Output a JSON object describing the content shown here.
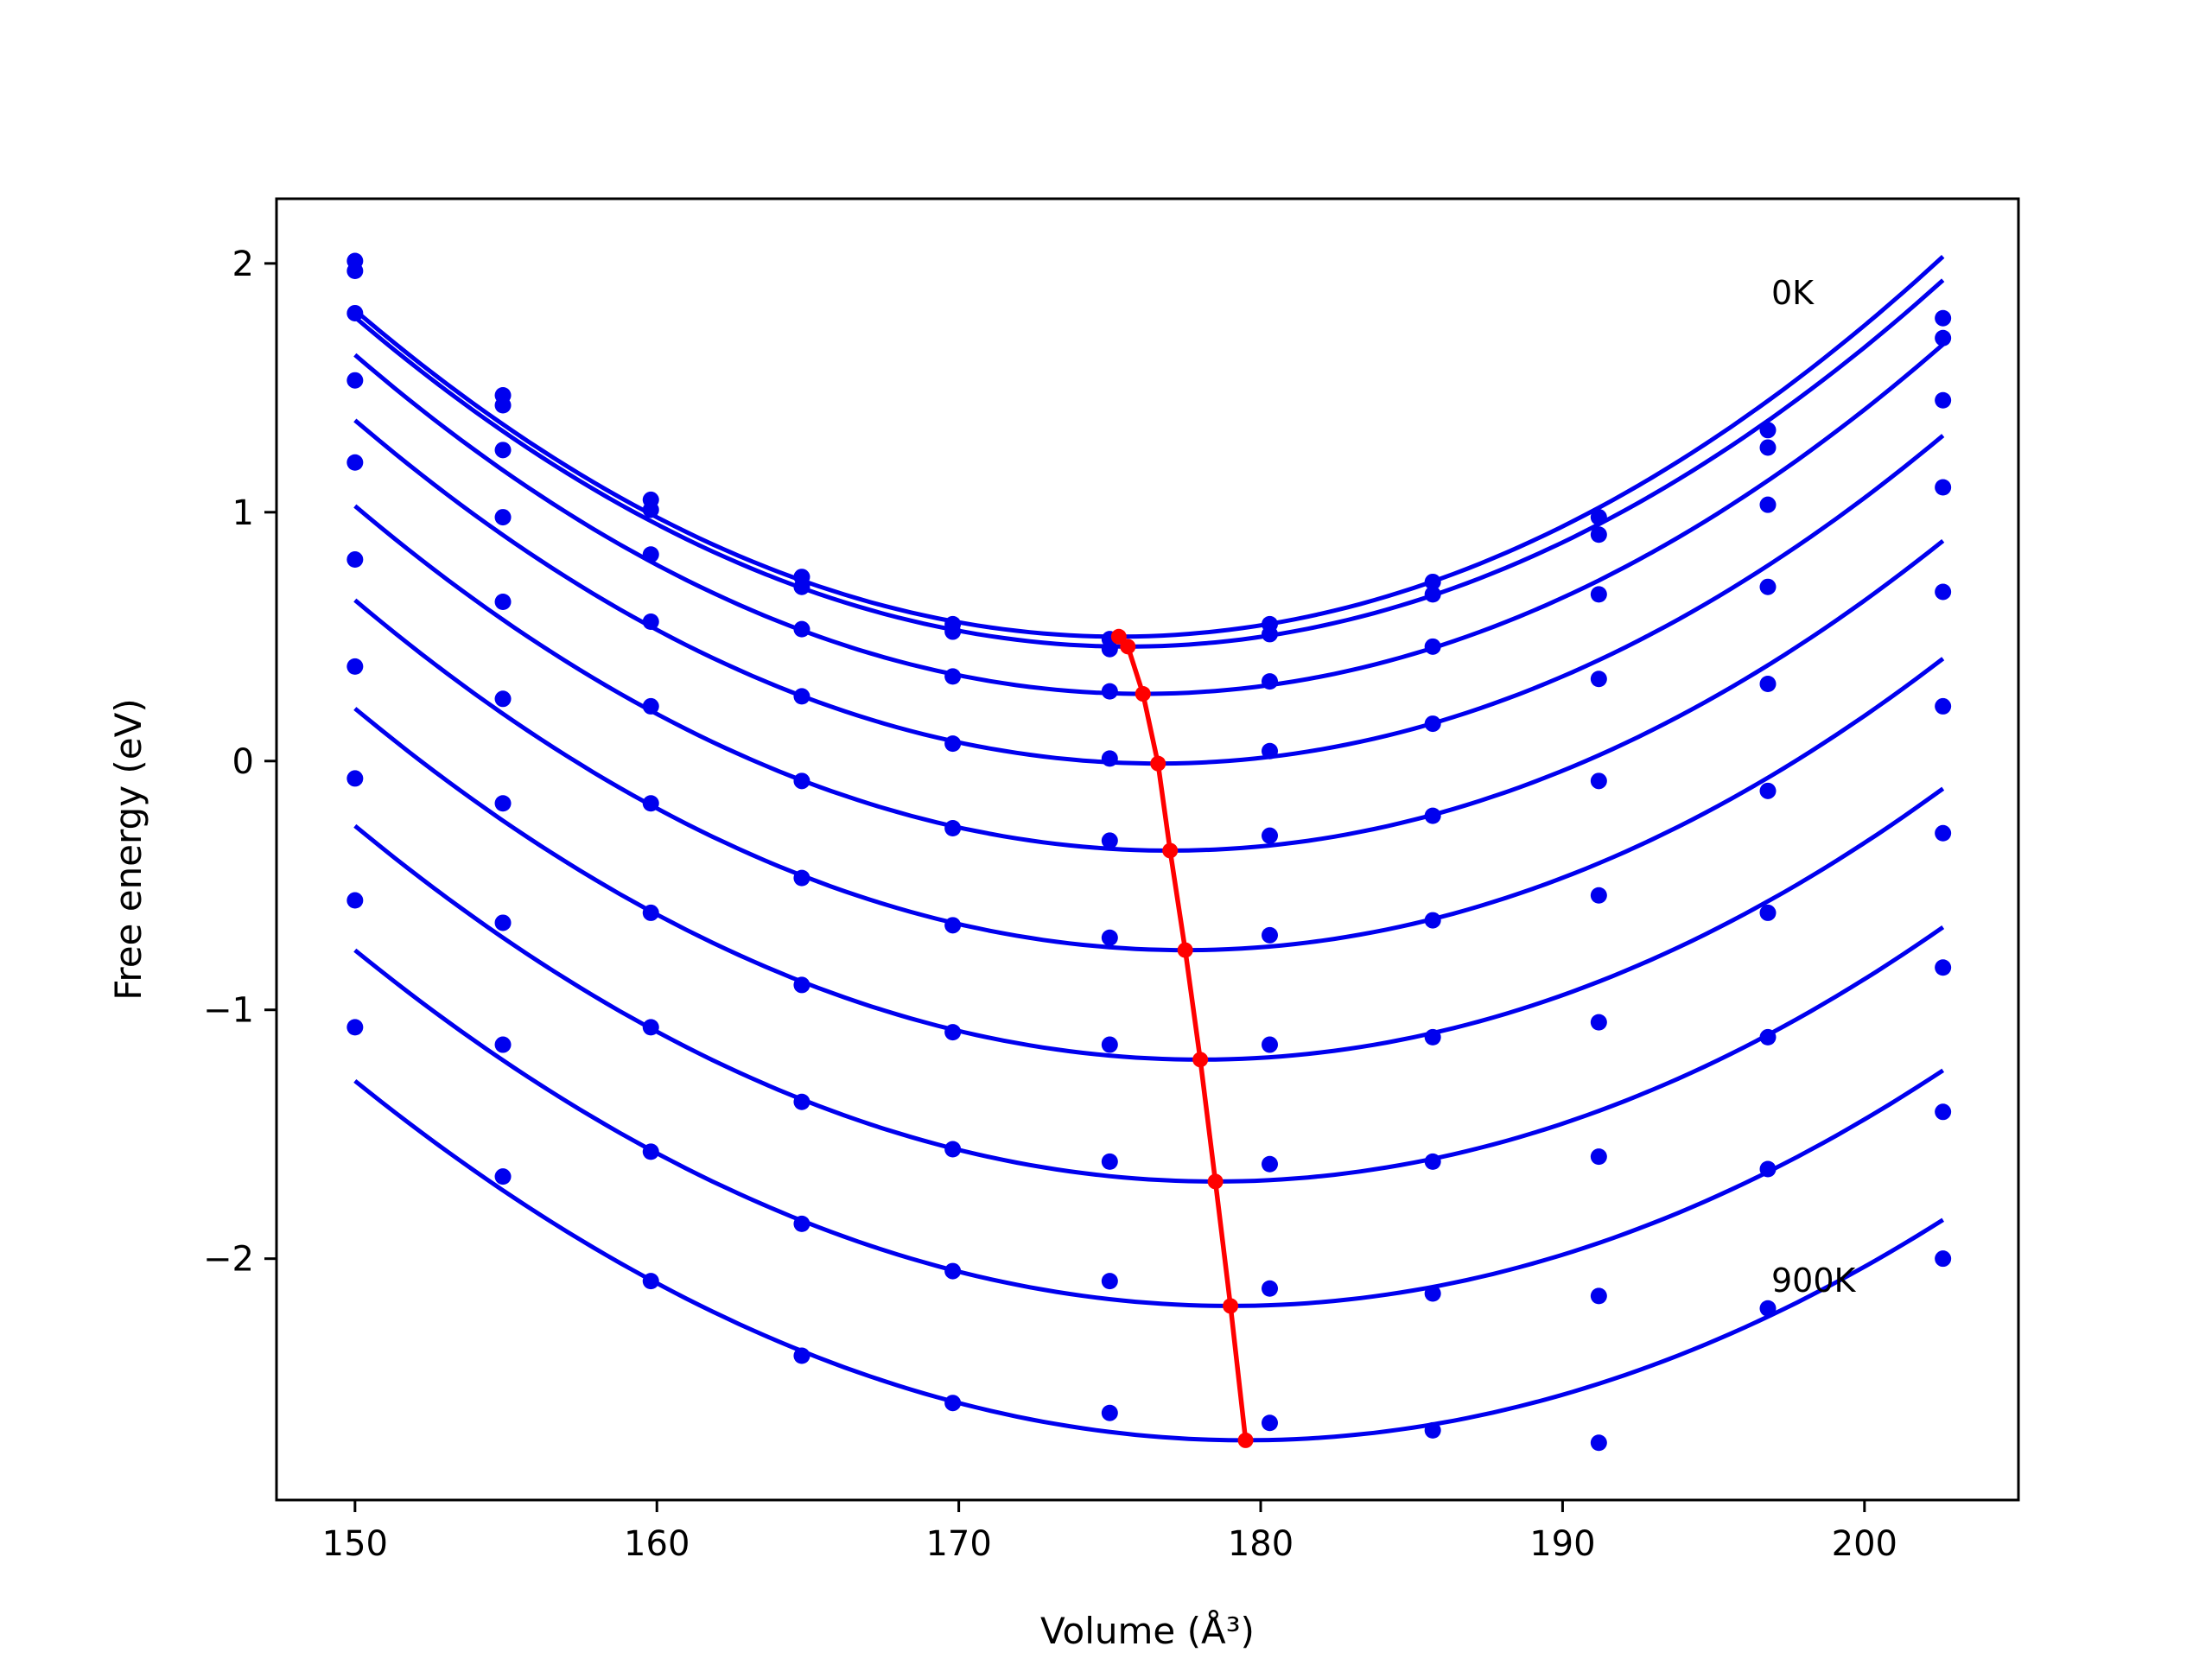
{
  "chart_data": {
    "type": "line",
    "xlabel": "Volume (Å³)",
    "ylabel": "Free energy (eV)",
    "xlim": [
      147.4,
      205.1
    ],
    "ylim": [
      -2.97,
      2.26
    ],
    "xticks": [
      150,
      160,
      170,
      180,
      190,
      200
    ],
    "yticks": [
      -2,
      -1,
      0,
      1,
      2
    ],
    "xtick_labels": [
      "150",
      "160",
      "170",
      "180",
      "190",
      "200"
    ],
    "ytick_labels": [
      "−2",
      "−1",
      "0",
      "1",
      "2"
    ],
    "grid": false,
    "annotations": [
      {
        "text": "0K",
        "x": 197.8,
        "y": 1.85
      },
      {
        "text": "900K",
        "x": 197.8,
        "y": -2.13
      }
    ],
    "colors": {
      "curves": "#0000ee",
      "minima": "#ff0000"
    },
    "volumes": [
      150.0,
      154.9,
      159.8,
      164.8,
      169.8,
      175.0,
      180.3,
      185.7,
      191.2,
      196.8,
      202.6
    ],
    "series": [
      {
        "fit_min": [
          175.3,
          0.5
        ],
        "fit_a": 0.00205,
        "points": [
          2.01,
          1.47,
          1.05,
          0.74,
          0.55,
          0.49,
          0.55,
          0.72,
          0.98,
          1.33,
          1.78
        ]
      },
      {
        "fit_min": [
          175.6,
          0.46
        ],
        "fit_a": 0.00202,
        "points": [
          1.97,
          1.43,
          1.01,
          0.7,
          0.52,
          0.45,
          0.51,
          0.67,
          0.91,
          1.26,
          1.7
        ]
      },
      {
        "fit_min": [
          176.1,
          0.27
        ],
        "fit_a": 0.002,
        "points": [
          1.8,
          1.25,
          0.83,
          0.53,
          0.34,
          0.28,
          0.32,
          0.46,
          0.67,
          1.03,
          1.45
        ]
      },
      {
        "fit_min": [
          176.6,
          -0.01
        ],
        "fit_a": 0.00195,
        "points": [
          1.53,
          0.98,
          0.56,
          0.26,
          0.07,
          0.01,
          0.04,
          0.15,
          0.33,
          0.7,
          1.1
        ]
      },
      {
        "fit_min": [
          177.0,
          -0.36
        ],
        "fit_a": 0.0019,
        "points": [
          1.2,
          0.64,
          0.22,
          -0.08,
          -0.27,
          -0.32,
          -0.3,
          -0.22,
          -0.08,
          0.31,
          0.68
        ]
      },
      {
        "fit_min": [
          177.5,
          -0.76
        ],
        "fit_a": 0.00186,
        "points": [
          0.81,
          0.25,
          -0.17,
          -0.47,
          -0.66,
          -0.71,
          -0.7,
          -0.64,
          -0.54,
          -0.12,
          0.22
        ]
      },
      {
        "fit_min": [
          178.0,
          -1.2
        ],
        "fit_a": 0.0018,
        "points": [
          0.38,
          -0.17,
          -0.61,
          -0.9,
          -1.09,
          -1.14,
          -1.14,
          -1.11,
          -1.05,
          -0.61,
          -0.29
        ]
      },
      {
        "fit_min": [
          178.5,
          -1.69
        ],
        "fit_a": 0.00176,
        "points": [
          -0.07,
          -0.65,
          -1.07,
          -1.37,
          -1.56,
          -1.61,
          -1.62,
          -1.61,
          -1.59,
          -1.11,
          -0.83
        ]
      },
      {
        "fit_min": [
          179.0,
          -2.19
        ],
        "fit_a": 0.0017,
        "points": [
          -0.56,
          -1.14,
          -1.57,
          -1.86,
          -2.05,
          -2.09,
          -2.12,
          -2.14,
          -2.15,
          -1.64,
          -1.41
        ]
      },
      {
        "fit_min": [
          179.5,
          -2.73
        ],
        "fit_a": 0.00166,
        "points": [
          -1.07,
          -1.67,
          -2.09,
          -2.39,
          -2.58,
          -2.62,
          -2.66,
          -2.69,
          -2.74,
          -2.2,
          -2.0
        ]
      }
    ]
  }
}
